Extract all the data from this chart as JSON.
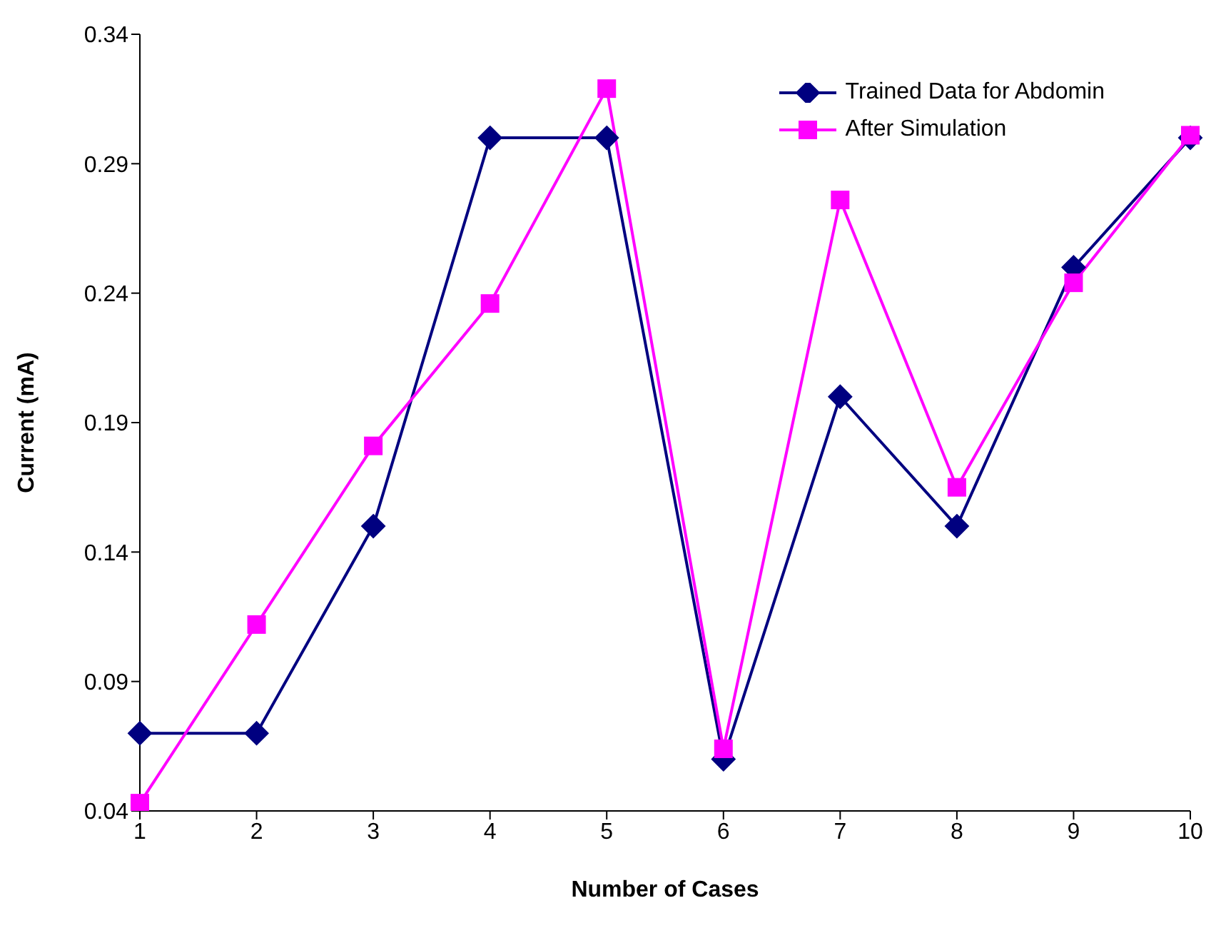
{
  "chart_data": {
    "type": "line",
    "xlabel": "Number of Cases",
    "ylabel": "Current (mA)",
    "categories": [
      "1",
      "2",
      "3",
      "4",
      "5",
      "6",
      "7",
      "8",
      "9",
      "10"
    ],
    "series": [
      {
        "name": "Trained Data for Abdomin",
        "color": "#000080",
        "marker": "diamond",
        "values": [
          0.07,
          0.07,
          0.15,
          0.3,
          0.3,
          0.06,
          0.2,
          0.15,
          0.25,
          0.3
        ]
      },
      {
        "name": "After Simulation",
        "color": "#ff00ff",
        "marker": "square",
        "values": [
          0.043,
          0.112,
          0.181,
          0.236,
          0.319,
          0.064,
          0.276,
          0.165,
          0.244,
          0.301
        ]
      }
    ],
    "ylim": [
      0.04,
      0.34
    ],
    "yticks": [
      0.04,
      0.09,
      0.14,
      0.19,
      0.24,
      0.29,
      0.34
    ],
    "grid": false,
    "legend": "top right",
    "line_style": "solid"
  }
}
